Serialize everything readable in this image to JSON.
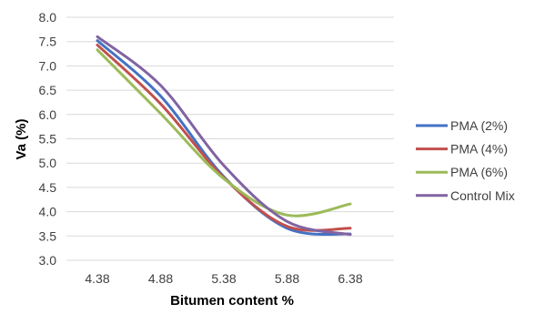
{
  "chart_data": {
    "type": "line",
    "xlabel": "Bitumen content %",
    "ylabel": "Va (%)",
    "x": [
      4.38,
      4.88,
      5.38,
      5.88,
      6.38
    ],
    "x_tick_labels": [
      "4.38",
      "4.88",
      "5.38",
      "5.88",
      "6.38"
    ],
    "ylim": [
      3.0,
      8.0
    ],
    "y_tick_labels": [
      "3.0",
      "3.5",
      "4.0",
      "4.5",
      "5.0",
      "5.5",
      "6.0",
      "6.5",
      "7.0",
      "7.5",
      "8.0"
    ],
    "grid": "horizontal",
    "smooth": true,
    "legend_position": "right",
    "series": [
      {
        "name": "PMA (2%)",
        "color": "#4472C4",
        "values": [
          7.52,
          6.38,
          4.72,
          3.66,
          3.54
        ]
      },
      {
        "name": "PMA (4%)",
        "color": "#C0504D",
        "values": [
          7.43,
          6.22,
          4.7,
          3.7,
          3.66
        ]
      },
      {
        "name": "PMA (6%)",
        "color": "#9BBB59",
        "values": [
          7.33,
          6.02,
          4.68,
          3.93,
          4.16
        ]
      },
      {
        "name": "Control Mix",
        "color": "#8064A2",
        "values": [
          7.6,
          6.6,
          4.95,
          3.8,
          3.53
        ]
      }
    ]
  }
}
